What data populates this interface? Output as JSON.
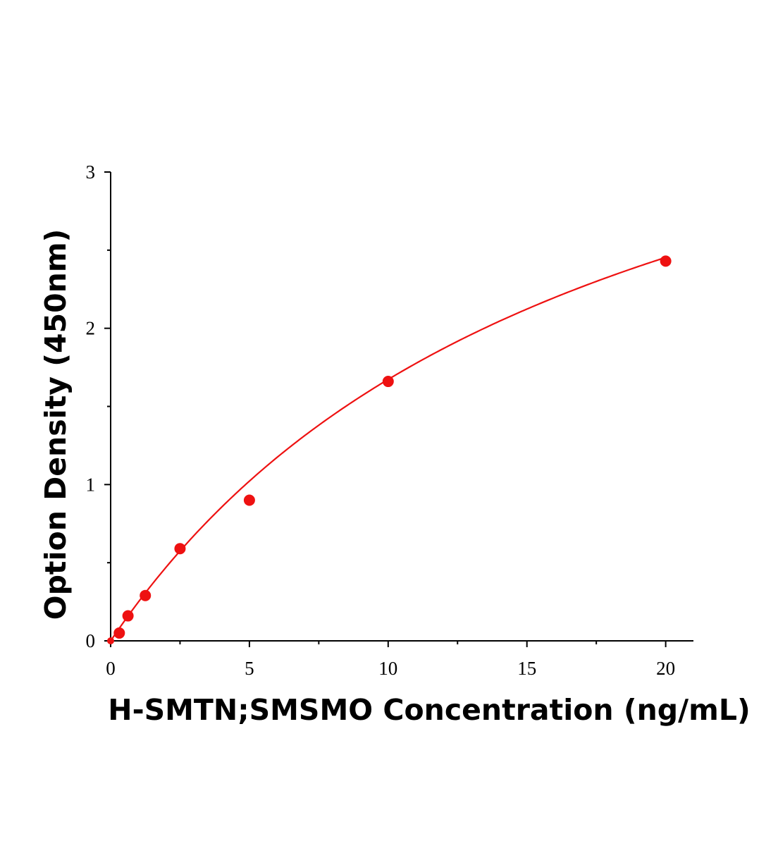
{
  "chart_data": {
    "type": "scatter",
    "title": "",
    "xlabel": "H-SMTN;SMSMO Concentration (ng/mL)",
    "ylabel": "Option Density (450nm)",
    "xlim": [
      0,
      21
    ],
    "ylim": [
      0,
      3
    ],
    "x_ticks": [
      0,
      5,
      10,
      15,
      20
    ],
    "y_ticks": [
      0,
      1,
      2,
      3
    ],
    "x_minor_ticks": [
      2.5,
      7.5,
      12.5,
      17.5
    ],
    "y_minor_ticks": [
      0.5,
      1.5,
      2.5
    ],
    "grid": false,
    "legend": "none",
    "color": "#ee1111",
    "series": [
      {
        "points": [
          {
            "x": 0,
            "y": 0
          },
          {
            "x": 0.3125,
            "y": 0.05
          },
          {
            "x": 0.625,
            "y": 0.16
          },
          {
            "x": 1.25,
            "y": 0.29
          },
          {
            "x": 2.5,
            "y": 0.59
          },
          {
            "x": 5,
            "y": 0.9
          },
          {
            "x": 10,
            "y": 1.66
          },
          {
            "x": 20,
            "y": 2.43
          }
        ]
      }
    ],
    "fit_curve": {
      "type": "saturation",
      "a": 4.6,
      "b": 17.5,
      "x_range": [
        0,
        20
      ]
    }
  }
}
